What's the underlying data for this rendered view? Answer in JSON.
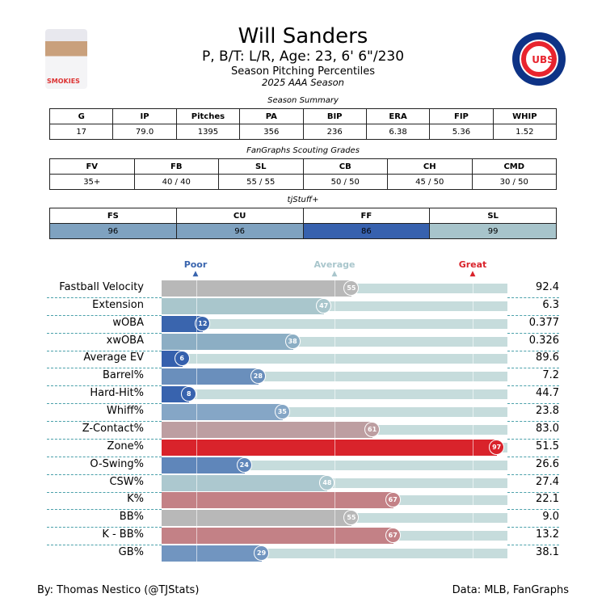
{
  "header": {
    "name": "Will Sanders",
    "bio": "P, B/T: L/R, Age: 23, 6' 6\"/230",
    "subtitle": "Season Pitching Percentiles",
    "season": "2025 AAA Season",
    "photo_text": "SMOKIES",
    "logo_text": "CUBS"
  },
  "season_summary": {
    "title": "Season Summary",
    "headers": [
      "G",
      "IP",
      "Pitches",
      "PA",
      "BIP",
      "ERA",
      "FIP",
      "WHIP"
    ],
    "values": [
      "17",
      "79.0",
      "1395",
      "356",
      "236",
      "6.38",
      "5.36",
      "1.52"
    ]
  },
  "scouting": {
    "title": "FanGraphs Scouting Grades",
    "headers": [
      "FV",
      "FB",
      "SL",
      "CB",
      "CH",
      "CMD"
    ],
    "values": [
      "35+",
      "40 / 40",
      "55 / 55",
      "50 / 50",
      "45 / 50",
      "30 / 50"
    ]
  },
  "tjstuff": {
    "title": "tjStuff+",
    "headers": [
      "FS",
      "CU",
      "FF",
      "SL"
    ],
    "values": [
      "96",
      "96",
      "86",
      "99"
    ],
    "colors": [
      "#7fa2c0",
      "#7fa2c0",
      "#3761ae",
      "#a7c4cb"
    ]
  },
  "legend": {
    "poor": "Poor",
    "average": "Average",
    "great": "Great",
    "poor_color": "#3a65ae",
    "average_color": "#a9c6cc",
    "great_color": "#d9232b"
  },
  "chart_data": {
    "type": "bar",
    "xlim": [
      0,
      100
    ],
    "track_color": "#c6dcdc",
    "categories": [
      "Fastball Velocity",
      "Extension",
      "wOBA",
      "xwOBA",
      "Average EV",
      "Barrel%",
      "Hard-Hit%",
      "Whiff%",
      "Z-Contact%",
      "Zone%",
      "O-Swing%",
      "CSW%",
      "K%",
      "BB%",
      "K - BB%",
      "GB%"
    ],
    "percentiles": [
      55,
      47,
      12,
      38,
      6,
      28,
      8,
      35,
      61,
      97,
      24,
      48,
      67,
      55,
      67,
      29
    ],
    "values": [
      "92.4",
      "6.3",
      "0.377",
      "0.326",
      "89.6",
      "7.2",
      "44.7",
      "23.8",
      "83.0",
      "51.5",
      "26.6",
      "27.4",
      "22.1",
      "9.0",
      "13.2",
      "38.1"
    ],
    "colors": [
      "#b8b8b8",
      "#a9c6cc",
      "#3a65ae",
      "#8caec4",
      "#3560ad",
      "#6a8fbc",
      "#3863ae",
      "#85a6c6",
      "#bd9ea1",
      "#d9232b",
      "#5f86ba",
      "#acc8cf",
      "#c38186",
      "#b8b8b8",
      "#c38186",
      "#7195c0"
    ]
  },
  "footer": {
    "left": "By: Thomas Nestico (@TJStats)",
    "right": "Data: MLB, FanGraphs"
  }
}
